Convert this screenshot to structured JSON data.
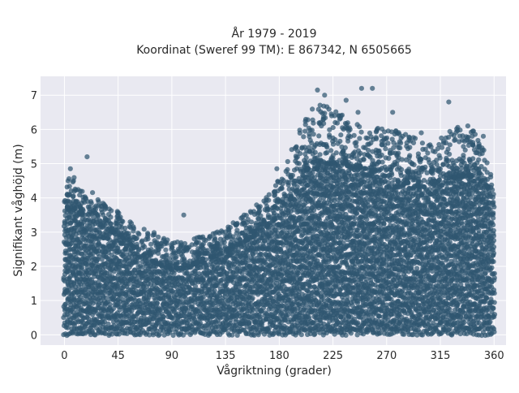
{
  "chart_data": {
    "type": "scatter",
    "title": "År 1979 - 2019",
    "subtitle": "Koordinat (Sweref 99 TM): E 867342, N 6505665",
    "xlabel": "Vågriktning (grader)",
    "ylabel": "Signifikant våghöjd (m)",
    "xlim": [
      -20,
      370
    ],
    "ylim": [
      -0.3,
      7.55
    ],
    "x_ticks": [
      0,
      45,
      90,
      135,
      180,
      225,
      270,
      315,
      360
    ],
    "y_ticks": [
      0,
      1,
      2,
      3,
      4,
      5,
      6,
      7
    ],
    "grid": true,
    "legend": "none",
    "marker_color": "#2f5670",
    "background_color": "#e9e9f1",
    "envelope": {
      "x": [
        0,
        5,
        15,
        20,
        30,
        45,
        60,
        75,
        90,
        105,
        120,
        135,
        150,
        165,
        180,
        195,
        200,
        210,
        225,
        240,
        255,
        270,
        285,
        300,
        315,
        330,
        345,
        355,
        360
      ],
      "dense_top": [
        3.4,
        3.7,
        3.5,
        3.5,
        3.2,
        2.9,
        2.5,
        2.1,
        1.9,
        2.0,
        2.2,
        2.4,
        2.7,
        3.0,
        3.5,
        4.2,
        4.7,
        5.0,
        5.0,
        4.9,
        4.8,
        4.6,
        4.4,
        4.3,
        4.5,
        4.6,
        4.6,
        4.3,
        3.3
      ],
      "outer_top": [
        4.2,
        4.8,
        4.2,
        4.5,
        3.9,
        3.6,
        3.2,
        3.0,
        2.7,
        2.8,
        2.9,
        3.1,
        3.5,
        3.9,
        4.6,
        5.8,
        6.3,
        6.8,
        6.6,
        6.3,
        6.0,
        6.2,
        5.9,
        5.7,
        5.8,
        6.1,
        6.0,
        5.2,
        4.0
      ]
    },
    "outliers": [
      {
        "x": 5,
        "y": 4.85
      },
      {
        "x": 19,
        "y": 5.2
      },
      {
        "x": 100,
        "y": 3.5
      },
      {
        "x": 178,
        "y": 4.85
      },
      {
        "x": 212,
        "y": 7.15
      },
      {
        "x": 218,
        "y": 7.0
      },
      {
        "x": 236,
        "y": 6.85
      },
      {
        "x": 249,
        "y": 7.2
      },
      {
        "x": 258,
        "y": 7.2
      },
      {
        "x": 262,
        "y": 6.0
      },
      {
        "x": 275,
        "y": 6.5
      },
      {
        "x": 299,
        "y": 5.9
      },
      {
        "x": 322,
        "y": 6.8
      },
      {
        "x": 338,
        "y": 6.1
      },
      {
        "x": 351,
        "y": 5.8
      },
      {
        "x": 246,
        "y": 6.5
      },
      {
        "x": 230,
        "y": 6.4
      }
    ]
  }
}
